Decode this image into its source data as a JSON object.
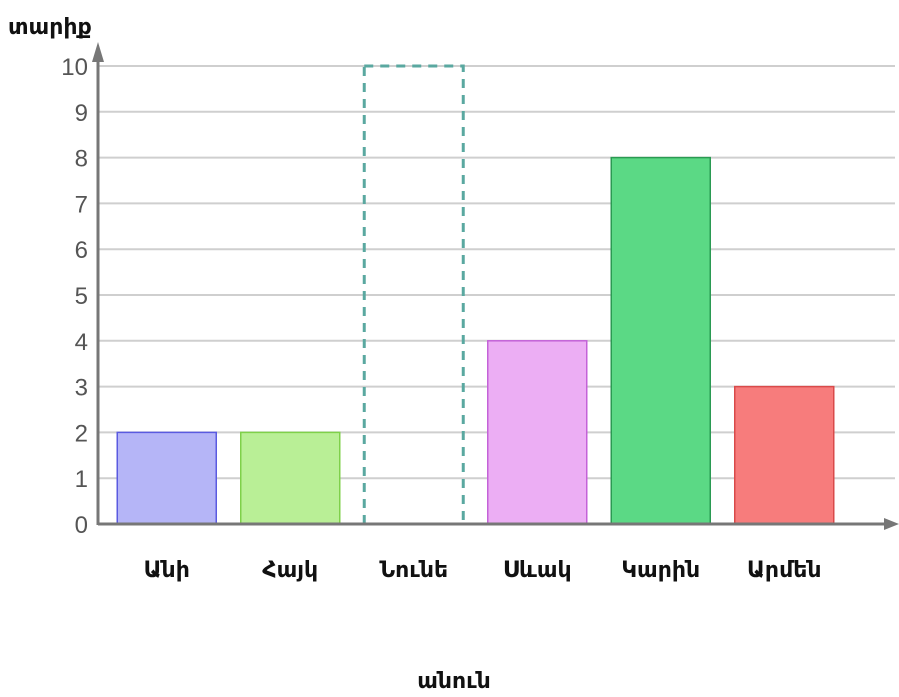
{
  "chart_data": {
    "type": "bar",
    "title": "",
    "ylabel": "տարիք",
    "xlabel": "անուն",
    "categories": [
      "Անի",
      "Հայկ",
      "Նունե",
      "Սևակ",
      "Կարին",
      "Արմեն"
    ],
    "values": [
      2,
      2,
      null,
      4,
      8,
      3
    ],
    "missing": [
      false,
      false,
      true,
      false,
      false,
      false
    ],
    "missing_placeholder_value": 10,
    "colors": [
      "#b5b5f7",
      "#b9ef96",
      "#ffffff",
      "#ecaef4",
      "#5bd985",
      "#f77c7c"
    ],
    "border_colors": [
      "#5a5ae0",
      "#7fd04a",
      "#5aa8a0",
      "#c462d8",
      "#2a9a52",
      "#d94a4a"
    ],
    "ylim": [
      0,
      10
    ],
    "yticks": [
      0,
      1,
      2,
      3,
      4,
      5,
      6,
      7,
      8,
      9,
      10
    ],
    "grid": true,
    "legend": "none"
  }
}
